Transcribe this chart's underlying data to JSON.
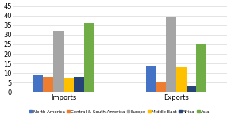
{
  "categories": [
    "Imports",
    "Exports"
  ],
  "series": {
    "North America": [
      9,
      14
    ],
    "Central & South America": [
      8,
      5
    ],
    "Europe": [
      32,
      39
    ],
    "Middle East": [
      7,
      13
    ],
    "Africa": [
      8,
      3
    ],
    "Asia": [
      36,
      25
    ]
  },
  "bar_colors": [
    "#4472c4",
    "#ed7d31",
    "#a5a5a5",
    "#ffc000",
    "#264478",
    "#70ad47"
  ],
  "legend_colors": [
    "#4472c4",
    "#ed7d31",
    "#a5a5a5",
    "#ffc000",
    "#264478",
    "#70ad47"
  ],
  "series_names": [
    "North America",
    "Central & South America",
    "Europe",
    "Middle East",
    "Africa",
    "Asia"
  ],
  "ylim": [
    0,
    45
  ],
  "yticks": [
    0,
    5,
    10,
    15,
    20,
    25,
    30,
    35,
    40,
    45
  ],
  "background_color": "#ffffff",
  "bar_width": 0.09,
  "group_centers": [
    1.0,
    2.0
  ],
  "cat_labels": [
    "Imports",
    "Exports"
  ]
}
